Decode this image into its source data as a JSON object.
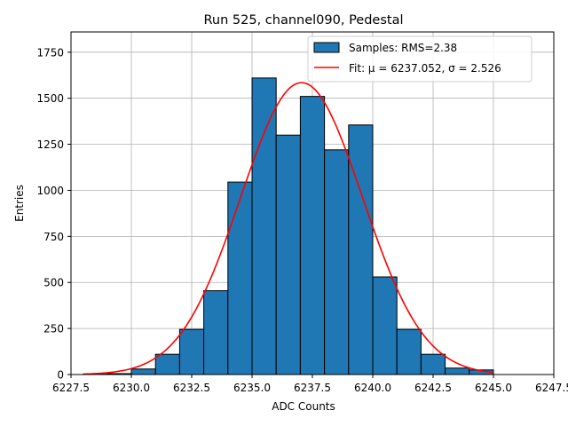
{
  "chart_data": {
    "type": "bar",
    "title": "Run 525, channel090, Pedestal",
    "xlabel": "ADC Counts",
    "ylabel": "Entries",
    "xlim": [
      6227.5,
      6247.5
    ],
    "ylim": [
      0,
      1860
    ],
    "x_ticks": [
      6227.5,
      6230.0,
      6232.5,
      6235.0,
      6237.5,
      6240.0,
      6242.5,
      6245.0,
      6247.5
    ],
    "x_tick_labels": [
      "6227.5",
      "6230.0",
      "6232.5",
      "6235.0",
      "6237.5",
      "6240.0",
      "6242.5",
      "6245.0",
      "6247.5"
    ],
    "y_ticks": [
      0,
      250,
      500,
      750,
      1000,
      1250,
      1500,
      1750
    ],
    "y_tick_labels": [
      "0",
      "250",
      "500",
      "750",
      "1000",
      "1250",
      "1500",
      "1750"
    ],
    "grid": true,
    "legend_position": "top-right",
    "series": [
      {
        "kind": "histogram",
        "name": "Samples: RMS=2.38",
        "color": "#1f77b4",
        "bin_edges": [
          6228,
          6229,
          6230,
          6231,
          6232,
          6233,
          6234,
          6235,
          6236,
          6237,
          6238,
          6239,
          6240,
          6241,
          6242,
          6243,
          6244,
          6245
        ],
        "values": [
          2,
          5,
          30,
          110,
          245,
          455,
          1045,
          1610,
          1300,
          1510,
          1220,
          1355,
          530,
          245,
          110,
          35,
          25
        ]
      },
      {
        "kind": "gaussian_fit",
        "name": "Fit: μ = 6237.052, σ = 2.526",
        "color": "#ff0000",
        "mu": 6237.052,
        "sigma": 2.526,
        "amplitude": 1585,
        "x_range": [
          6228,
          6245
        ]
      }
    ]
  }
}
